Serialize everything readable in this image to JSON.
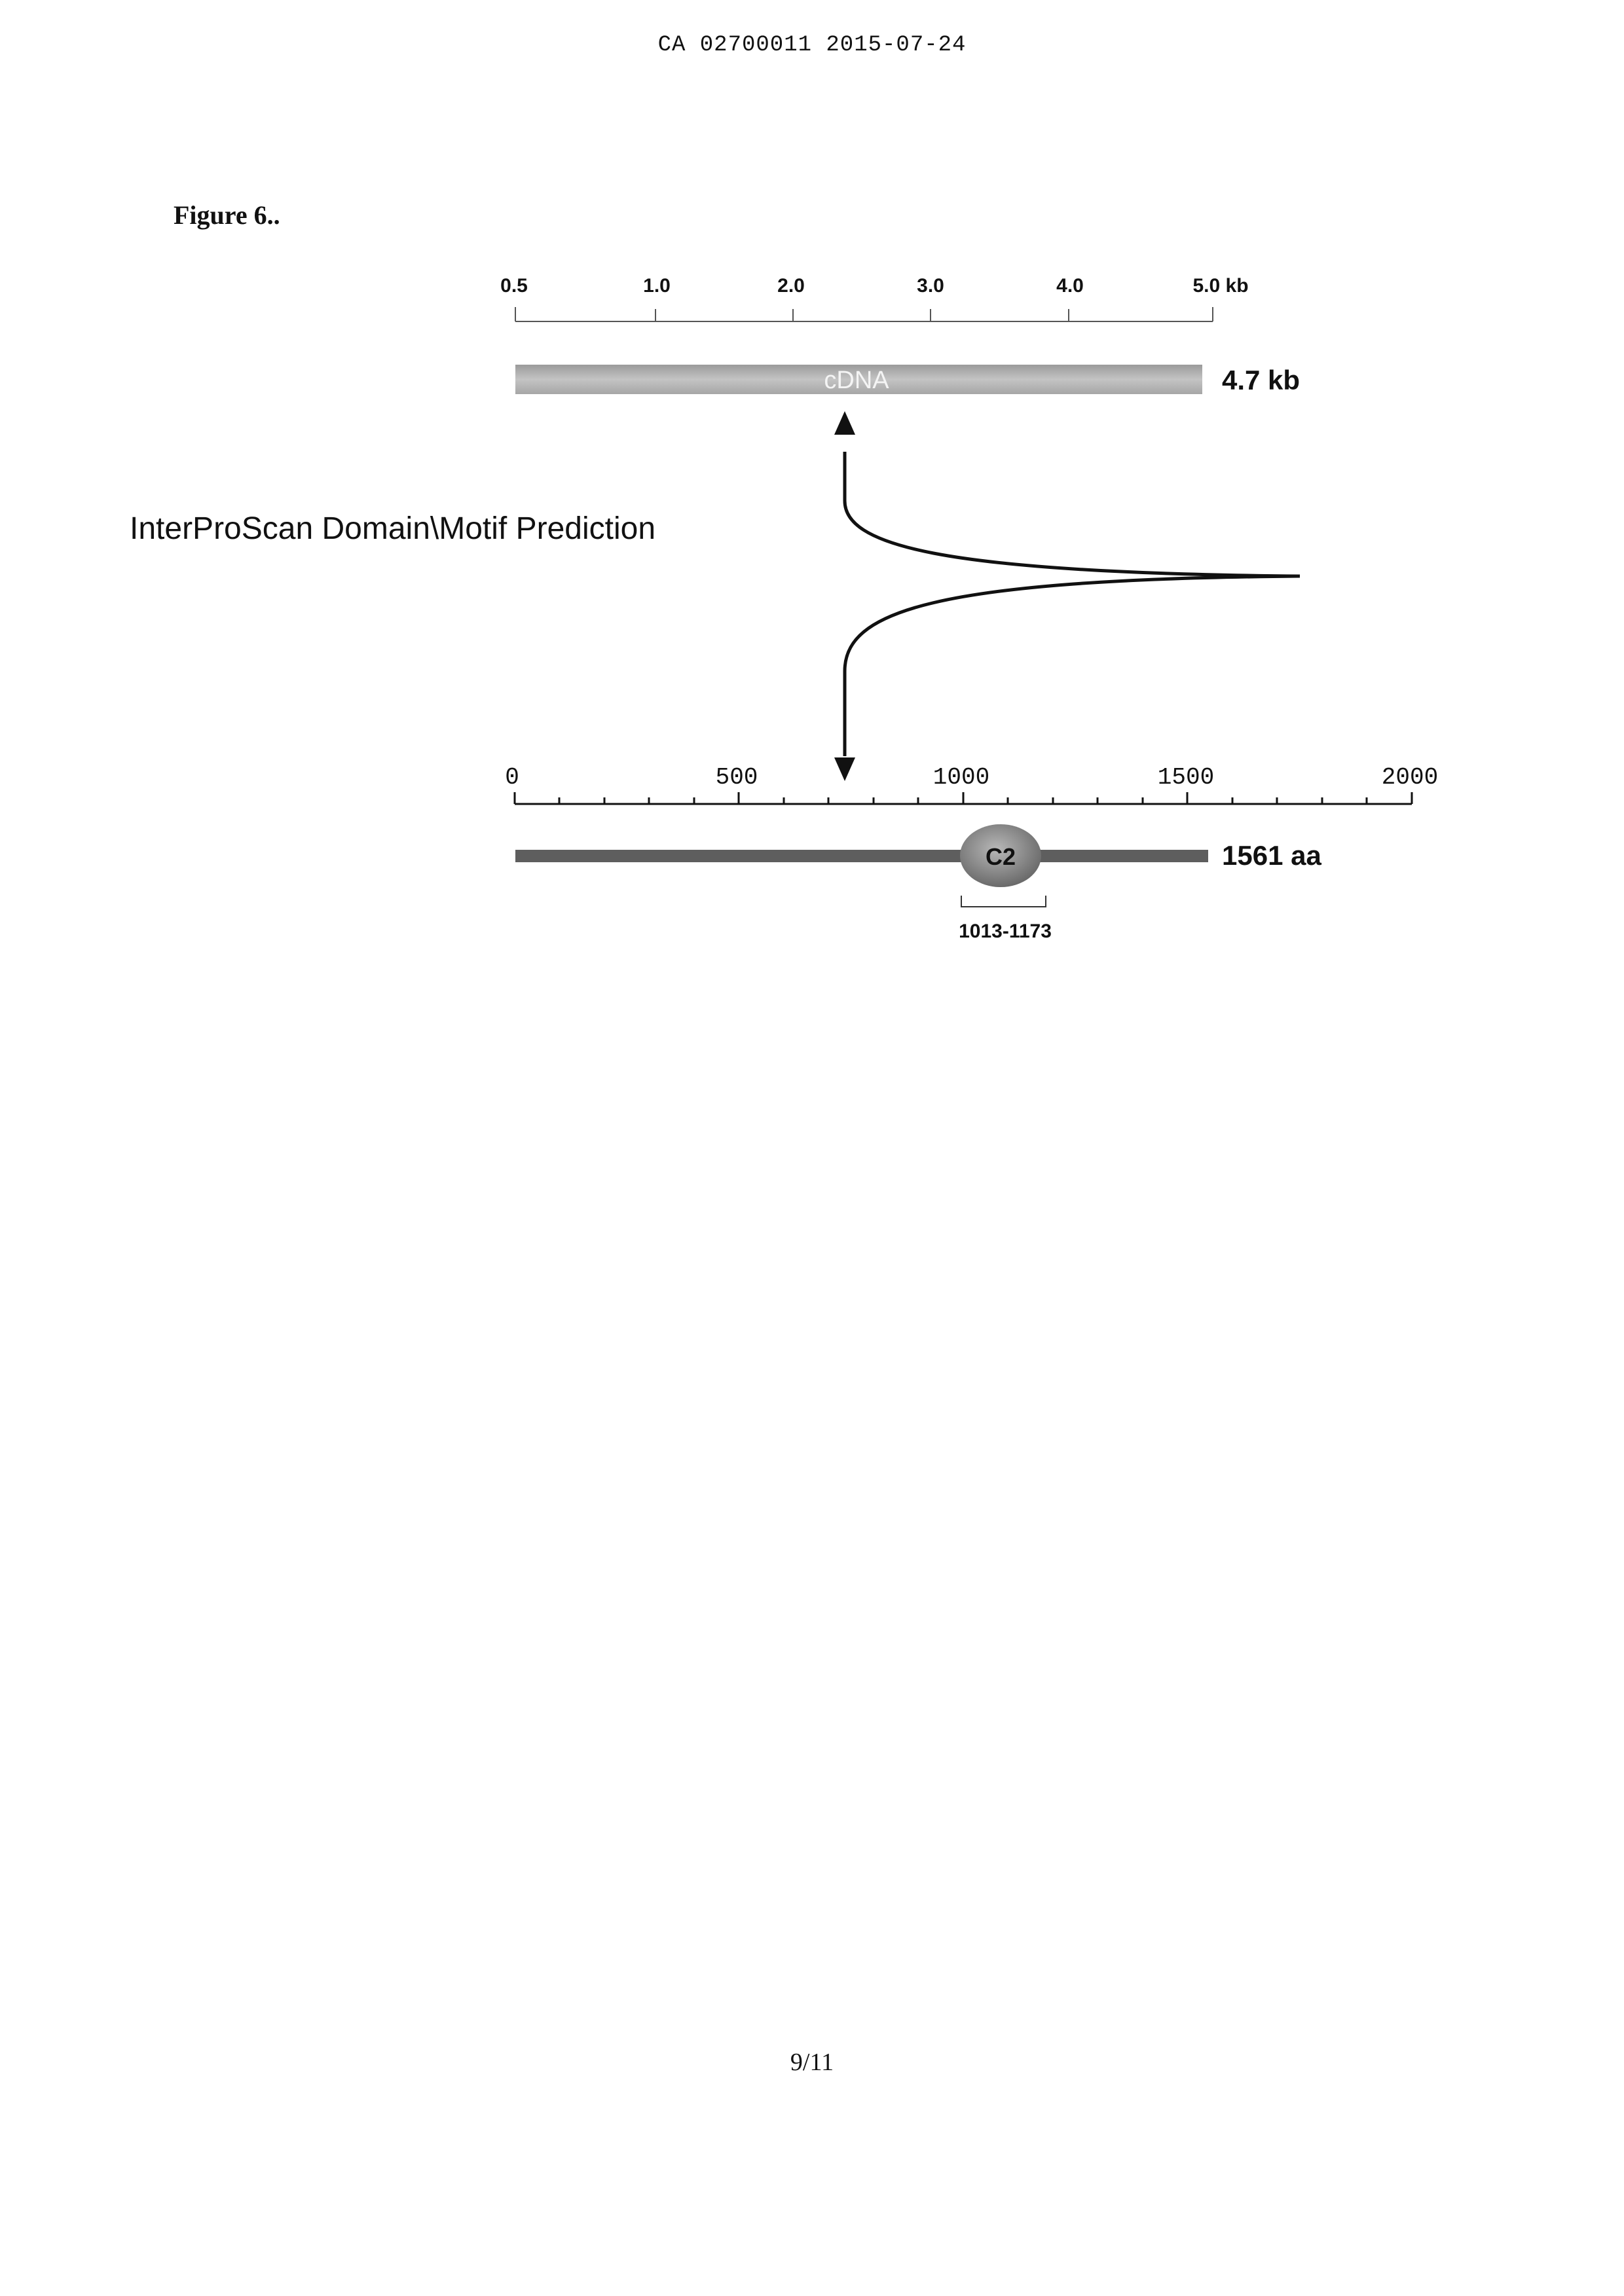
{
  "header": {
    "document_id": "CA 02700011 2015-07-24"
  },
  "figure": {
    "label": "Figure 6..",
    "prediction_label": "InterProScan Domain\\Motif Prediction",
    "cdna_scale": {
      "ticks": [
        "0.5",
        "1.0",
        "2.0",
        "3.0",
        "4.0",
        "5.0 kb"
      ]
    },
    "cdna_bar": {
      "text": "cDNA",
      "length_label": "4.7 kb"
    },
    "protein_scale": {
      "ticks": [
        "0",
        "500",
        "1000",
        "1500",
        "2000"
      ]
    },
    "protein_bar": {
      "length_label": "1561 aa"
    },
    "domain": {
      "name": "C2",
      "range_label": "1013-1173"
    }
  },
  "footer": {
    "page_number": "9/11"
  }
}
